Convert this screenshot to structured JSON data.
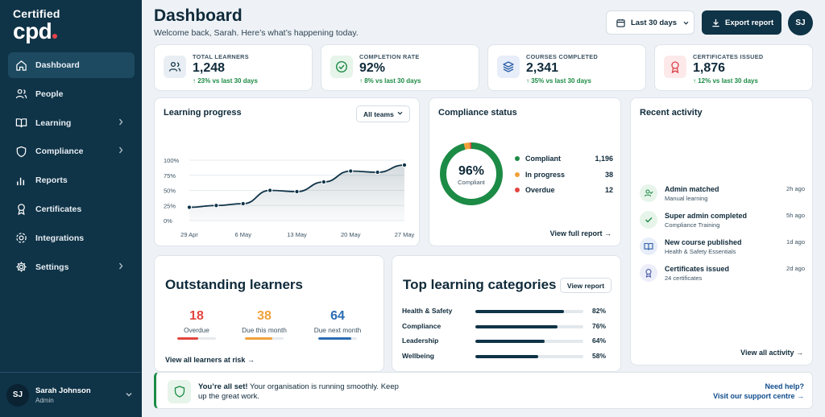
{
  "sidebar": {
    "logo_line1": "Certified",
    "logo_line2": "cpd",
    "items": [
      {
        "label": "Dashboard",
        "icon": "home-icon",
        "active": true,
        "expandable": false
      },
      {
        "label": "People",
        "icon": "people-icon",
        "active": false,
        "expandable": false
      },
      {
        "label": "Learning",
        "icon": "book-icon",
        "active": false,
        "expandable": true
      },
      {
        "label": "Compliance",
        "icon": "shield-icon",
        "active": false,
        "expandable": true
      },
      {
        "label": "Reports",
        "icon": "bar-chart-icon",
        "active": false,
        "expandable": false
      },
      {
        "label": "Certificates",
        "icon": "award-icon",
        "active": false,
        "expandable": false
      },
      {
        "label": "Integrations",
        "icon": "integrations-icon",
        "active": false,
        "expandable": false
      },
      {
        "label": "Settings",
        "icon": "gear-icon",
        "active": false,
        "expandable": true
      }
    ],
    "user": {
      "initials": "SJ",
      "name": "Sarah Johnson",
      "role": "Admin"
    }
  },
  "header": {
    "title": "Dashboard",
    "subtitle": "Welcome back, Sarah. Here’s what’s happening today.",
    "range_label": "Last 30 days",
    "export_label": "Export report",
    "avatar_initials": "SJ"
  },
  "stats": [
    {
      "label": "TOTAL LEARNERS",
      "value": "1,248",
      "change": "↑ 23% vs last 30 days",
      "icon": "users-icon",
      "icon_bg": "#e8eef3",
      "icon_color": "#0f3347"
    },
    {
      "label": "COMPLETION RATE",
      "value": "92%",
      "change": "↑ 8% vs last 30 days",
      "icon": "check-circle-icon",
      "icon_bg": "#e6f4ea",
      "icon_color": "#1c8b45"
    },
    {
      "label": "COURSES COMPLETED",
      "value": "2,341",
      "change": "↑ 35% vs last 30 days",
      "icon": "layers-icon",
      "icon_bg": "#e7eef9",
      "icon_color": "#2b5ea8"
    },
    {
      "label": "CERTIFICATES ISSUED",
      "value": "1,876",
      "change": "↑ 12% vs last 30 days",
      "icon": "award-icon",
      "icon_bg": "#fde9ea",
      "icon_color": "#d9424a"
    }
  ],
  "learning_progress": {
    "title": "Learning progress",
    "filter_label": "All teams"
  },
  "chart_data": {
    "type": "area",
    "title": "Learning progress",
    "x": [
      "29 Apr",
      "2 May",
      "6 May",
      "10 May",
      "13 May",
      "17 May",
      "20 May",
      "24 May",
      "27 May"
    ],
    "x_tick_labels": [
      "29 Apr",
      "6 May",
      "13 May",
      "20 May",
      "27 May"
    ],
    "values": [
      22,
      25,
      28,
      50,
      48,
      64,
      82,
      80,
      92
    ],
    "y_ticks": [
      "0%",
      "25%",
      "50%",
      "75%",
      "100%"
    ],
    "ylim": [
      0,
      100
    ],
    "grid": true
  },
  "compliance": {
    "title": "Compliance status",
    "percent": "96%",
    "percent_label": "Compliant",
    "items": [
      {
        "label": "Compliant",
        "count": "1,196",
        "color": "#1c8b45"
      },
      {
        "label": "In progress",
        "count": "38",
        "color": "#f0a13a"
      },
      {
        "label": "Overdue",
        "count": "12",
        "color": "#e2453f"
      }
    ],
    "link": "View full report →"
  },
  "activity": {
    "title": "Recent activity",
    "items": [
      {
        "title": "Admin matched",
        "sub": "Manual learning",
        "time": "2h ago",
        "icon": "user-check-icon",
        "bg": "#e6f4ea",
        "color": "#1c8b45"
      },
      {
        "title": "Super admin completed",
        "sub": "Compliance Training",
        "time": "5h ago",
        "icon": "check-icon",
        "bg": "#e6f4ea",
        "color": "#1c8b45"
      },
      {
        "title": "New course published",
        "sub": "Health & Safety Essentials",
        "time": "1d ago",
        "icon": "book-open-icon",
        "bg": "#e7eef9",
        "color": "#2b5ea8"
      },
      {
        "title": "Certificates issued",
        "sub": "24 certificates",
        "time": "2d ago",
        "icon": "award-icon",
        "bg": "#eceef9",
        "color": "#4a5aa8"
      }
    ],
    "link": "View all activity →"
  },
  "outstanding": {
    "title": "Outstanding learners",
    "stats": [
      {
        "value": "18",
        "label": "Overdue",
        "color": "#e2453f",
        "fill": 0.55
      },
      {
        "value": "38",
        "label": "Due this month",
        "color": "#f0a13a",
        "fill": 0.7
      },
      {
        "value": "64",
        "label": "Due next month",
        "color": "#2b6cb3",
        "fill": 0.85
      }
    ],
    "link": "View all learners at risk →"
  },
  "categories": {
    "title": "Top learning categories",
    "button": "View report",
    "items": [
      {
        "name": "Health & Safety",
        "percent": "82%",
        "value": 82
      },
      {
        "name": "Compliance",
        "percent": "76%",
        "value": 76
      },
      {
        "name": "Leadership",
        "percent": "64%",
        "value": 64
      },
      {
        "name": "Wellbeing",
        "percent": "58%",
        "value": 58
      }
    ]
  },
  "banner": {
    "bold": "You’re all set!",
    "text": " Your organisation is running smoothly. Keep up the great work.",
    "help_title": "Need help?",
    "help_link": "Visit our support centre →"
  }
}
